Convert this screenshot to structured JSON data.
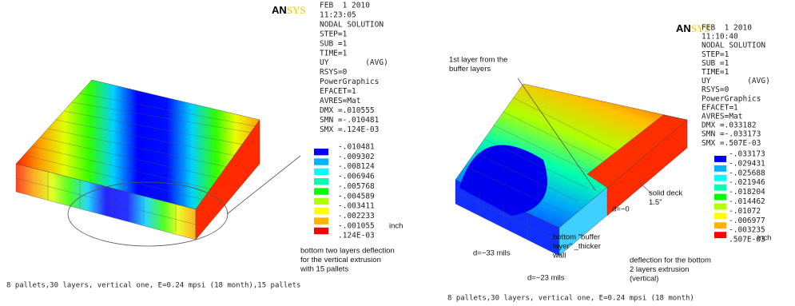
{
  "panels": [
    {
      "logo": {
        "bold": "AN",
        "light": "SYS"
      },
      "info": [
        "FEB  1 2010",
        "11:23:05",
        "NODAL SOLUTION",
        "STEP=1",
        "SUB =1",
        "TIME=1",
        "UY        (AVG)",
        "RSYS=0",
        "PowerGraphics",
        "EFACET=1",
        "AVRES=Mat",
        "DMX =.010555",
        "SMN =-.010481",
        "SMX =.124E-03"
      ],
      "legend": {
        "labels": [
          "-.010481",
          "-.009302",
          "-.008124",
          "-.006946",
          "-.005768",
          "-.004589",
          "-.003411",
          "-.002233",
          "-.001055",
          ".124E-03"
        ],
        "colors": [
          "#0000ff",
          "#00b2ff",
          "#00ffff",
          "#00ffb2",
          "#00ff00",
          "#b2ff00",
          "#ffff00",
          "#ffb200",
          "#ff0000"
        ],
        "unit": "inch"
      },
      "annotations": [
        [
          "bottom two layers deflection",
          "for the vertical extrusion",
          "with 15 pallets"
        ]
      ],
      "caption": "8 pallets,30 layers, vertical one, E=0.24 mpsi (18 month),15 pallets"
    },
    {
      "logo": {
        "bold": "AN",
        "light": "SYS"
      },
      "info": [
        "FEB  1 2010",
        "11:10:40",
        "NODAL SOLUTION",
        "STEP=1",
        "SUB =1",
        "TIME=1",
        "UY        (AVG)",
        "RSYS=0",
        "PowerGraphics",
        "EFACET=1",
        "AVRES=Mat",
        "DMX =.033182",
        "SMN =-.033173",
        "SMX =.507E-03"
      ],
      "legend": {
        "labels": [
          "-.033173",
          "-.029431",
          "-.025688",
          "-.021946",
          "-.018204",
          "-.014462",
          "-.01072",
          "-.006977",
          "-.003235",
          ".507E-03"
        ],
        "colors": [
          "#0000ff",
          "#00b2ff",
          "#00ffff",
          "#00ffb2",
          "#00ff00",
          "#b2ff00",
          "#ffff00",
          "#ffb200",
          "#ff0000"
        ],
        "unit": "inch"
      },
      "annotations": [
        [
          "1st layer from the",
          "buffer layers"
        ],
        [
          "solid deck",
          "1.5\""
        ],
        [
          "d=~0"
        ],
        [
          "bottom \"buffer",
          "layer\" _thicker",
          "wall"
        ],
        [
          "d=~33 mils"
        ],
        [
          "d=~23 mils"
        ],
        [
          "deflection for the bottom",
          "2 layers extrusion",
          "(vertical)"
        ]
      ],
      "caption": "8 pallets,30 layers, vertical one, E=0.24 mpsi (18 month)"
    }
  ]
}
